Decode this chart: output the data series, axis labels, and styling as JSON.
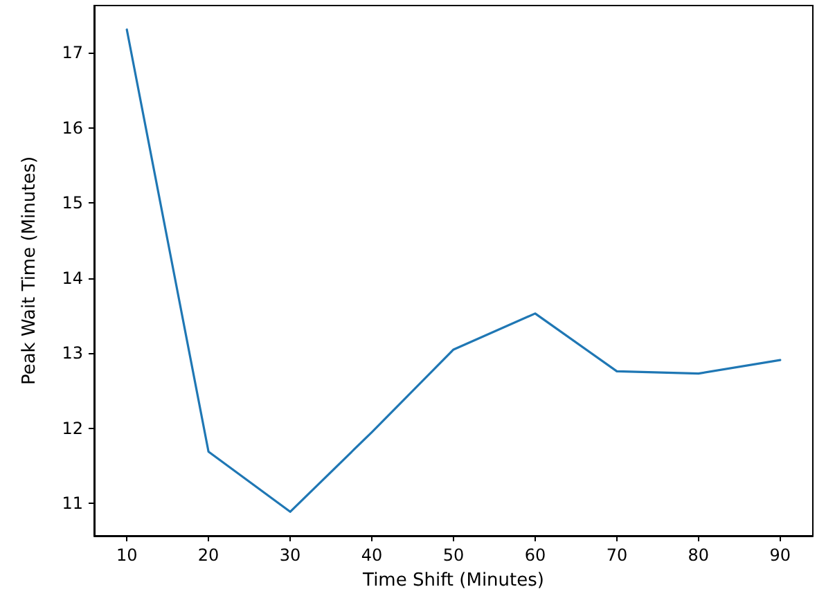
{
  "chart_data": {
    "type": "line",
    "xlabel": "Time Shift (Minutes)",
    "ylabel": "Peak Wait Time (Minutes)",
    "x": [
      10,
      20,
      30,
      40,
      50,
      60,
      70,
      80,
      90
    ],
    "series": [
      {
        "color": "#1f77b4",
        "values": [
          17.31,
          11.69,
          10.89,
          11.95,
          13.05,
          13.53,
          12.76,
          12.73,
          12.91
        ]
      }
    ],
    "xlim": [
      6,
      94
    ],
    "xticks": [
      10,
      20,
      30,
      40,
      50,
      60,
      70,
      80,
      90
    ],
    "ylim": [
      10.57,
      17.63
    ],
    "yticks": [
      11,
      12,
      13,
      14,
      15,
      16,
      17
    ],
    "marker": "none",
    "line_style": "solid"
  }
}
